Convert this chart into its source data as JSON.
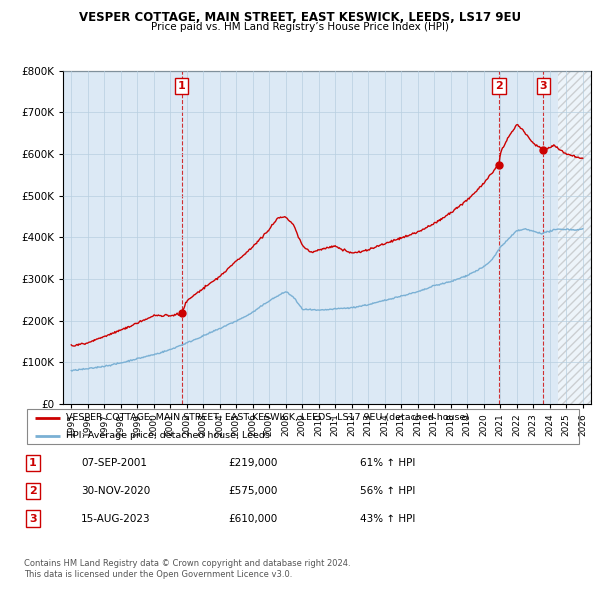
{
  "title": "VESPER COTTAGE, MAIN STREET, EAST KESWICK, LEEDS, LS17 9EU",
  "subtitle": "Price paid vs. HM Land Registry’s House Price Index (HPI)",
  "legend_line1": "VESPER COTTAGE, MAIN STREET, EAST KESWICK, LEEDS, LS17 9EU (detached house)",
  "legend_line2": "HPI: Average price, detached house, Leeds",
  "footer1": "Contains HM Land Registry data © Crown copyright and database right 2024.",
  "footer2": "This data is licensed under the Open Government Licence v3.0.",
  "transactions": [
    {
      "num": 1,
      "date": "07-SEP-2001",
      "price": "£219,000",
      "pct": "61% ↑ HPI",
      "x": 2001.7
    },
    {
      "num": 2,
      "date": "30-NOV-2020",
      "price": "£575,000",
      "pct": "56% ↑ HPI",
      "x": 2020.92
    },
    {
      "num": 3,
      "date": "15-AUG-2023",
      "price": "£610,000",
      "pct": "43% ↑ HPI",
      "x": 2023.62
    }
  ],
  "ylim": [
    0,
    800000
  ],
  "xlim_start": 1994.5,
  "xlim_end": 2026.5,
  "red_color": "#cc0000",
  "blue_color": "#7ab0d4",
  "plot_bg_color": "#dce9f5",
  "background_color": "#ffffff",
  "grid_color": "#b8cfe0"
}
